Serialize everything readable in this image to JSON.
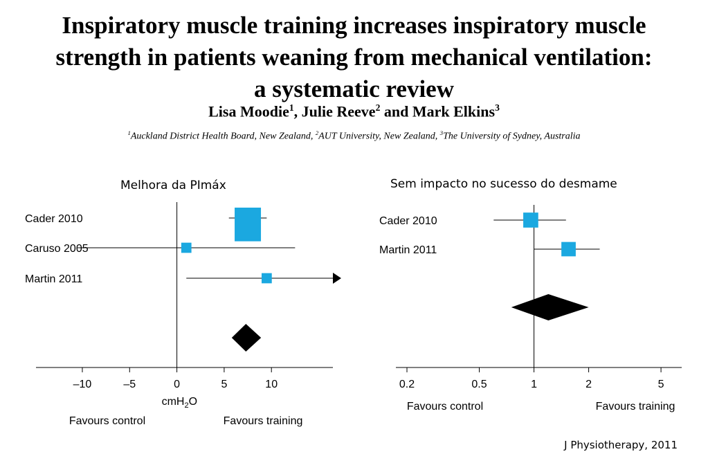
{
  "paper": {
    "title_lines": [
      "Inspiratory muscle training increases inspiratory muscle",
      "strength in patients weaning from mechanical ventilation:",
      "a systematic review"
    ],
    "authors": [
      {
        "name": "Lisa Moodie",
        "sup": "1"
      },
      {
        "name": "Julie Reeve",
        "sup": "2"
      },
      {
        "name": "Mark Elkins",
        "sup": "3"
      }
    ],
    "author_sep": ", ",
    "author_and": " and ",
    "affiliations": [
      {
        "sup": "1",
        "text": "Auckland District Health Board, New Zealand"
      },
      {
        "sup": "2",
        "text": "AUT University, New Zealand"
      },
      {
        "sup": "3",
        "text": "The University of Sydney, Australia"
      }
    ],
    "affiliation_sep": ", "
  },
  "captions": {
    "left": "Melhora da PImáx",
    "right": "Sem impacto no sucesso do desmame"
  },
  "journal": "J Physiotherapy, 2011",
  "colors": {
    "marker": "#1ba8e0",
    "diamond": "#000000",
    "line": "#000000"
  },
  "chart_data": [
    {
      "type": "forest",
      "scale": "linear",
      "xlim": [
        -16,
        16.5
      ],
      "ticks": [
        -10,
        -5,
        0,
        5,
        10
      ],
      "tick_labels": [
        "–10",
        "–5",
        "0",
        "5",
        "10"
      ],
      "null_value": 0,
      "xlabel_main": "cmH",
      "xlabel_sub": "2",
      "xlabel_tail": "O",
      "favours_left": "Favours control",
      "favours_right": "Favours training",
      "studies": [
        {
          "label": "Cader 2010",
          "estimate": 7.5,
          "ci": [
            5.5,
            9.5
          ],
          "weight": 1.0
        },
        {
          "label": "Caruso 2005",
          "estimate": 1.0,
          "ci": [
            -10.5,
            12.5
          ],
          "weight": 0.15
        },
        {
          "label": "Martin 2011",
          "estimate": 9.5,
          "ci": [
            1.0,
            16.5
          ],
          "weight": 0.15,
          "arrow_right": true
        }
      ],
      "pooled": {
        "estimate": 7.3,
        "ci": [
          5.8,
          8.9
        ]
      }
    },
    {
      "type": "forest",
      "scale": "log",
      "xlim": [
        0.18,
        6.5
      ],
      "ticks": [
        0.2,
        0.5,
        1,
        2,
        5
      ],
      "tick_labels": [
        "0.2",
        "0.5",
        "1",
        "2",
        "5"
      ],
      "null_value": 1,
      "favours_left": "Favours control",
      "favours_right": "Favours training",
      "studies": [
        {
          "label": "Cader 2010",
          "estimate": 0.96,
          "ci": [
            0.6,
            1.5
          ],
          "weight": 0.6
        },
        {
          "label": "Martin 2011",
          "estimate": 1.55,
          "ci": [
            1.0,
            2.3
          ],
          "weight": 0.55
        }
      ],
      "pooled": {
        "estimate": 1.2,
        "ci": [
          0.75,
          2.0
        ]
      }
    }
  ]
}
